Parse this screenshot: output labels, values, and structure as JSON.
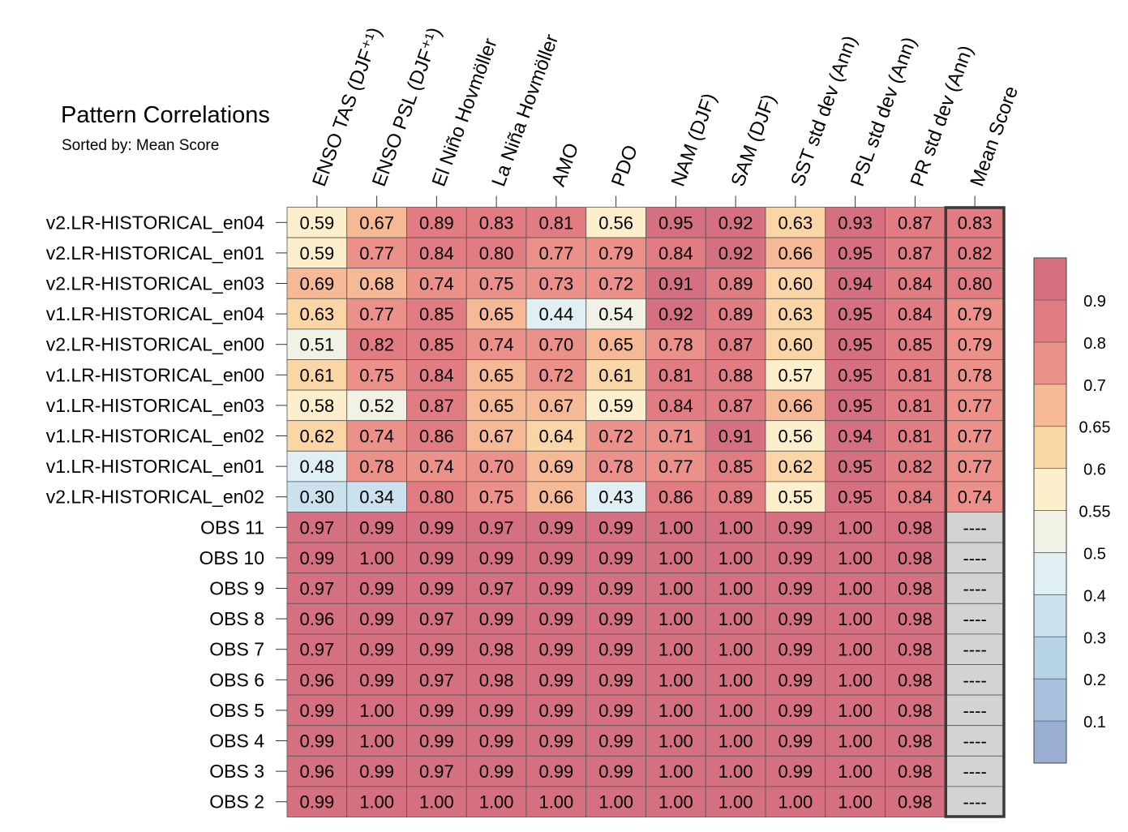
{
  "title": "Pattern Correlations",
  "subtitle": "Sorted by: Mean Score",
  "chart_data": {
    "type": "heatmap",
    "title": "Pattern Correlations",
    "subtitle": "Sorted by: Mean Score",
    "columns": [
      "ENSO TAS (DJF⁺¹)",
      "ENSO PSL (DJF⁺¹)",
      "El Niño Hovmöller",
      "La Niña Hovmöller",
      "AMO",
      "PDO",
      "NAM (DJF)",
      "SAM (DJF)",
      "SST std dev (Ann)",
      "PSL std dev (Ann)",
      "PR std dev (Ann)",
      "Mean Score"
    ],
    "rows": [
      "v2.LR-HISTORICAL_en04",
      "v2.LR-HISTORICAL_en01",
      "v2.LR-HISTORICAL_en03",
      "v1.LR-HISTORICAL_en04",
      "v2.LR-HISTORICAL_en00",
      "v1.LR-HISTORICAL_en00",
      "v1.LR-HISTORICAL_en03",
      "v1.LR-HISTORICAL_en02",
      "v1.LR-HISTORICAL_en01",
      "v2.LR-HISTORICAL_en02",
      "OBS 11",
      "OBS 10",
      "OBS 9",
      "OBS 8",
      "OBS 7",
      "OBS 6",
      "OBS 5",
      "OBS 4",
      "OBS 3",
      "OBS 2"
    ],
    "values": [
      [
        "0.59",
        "0.67",
        "0.89",
        "0.83",
        "0.81",
        "0.56",
        "0.95",
        "0.92",
        "0.63",
        "0.93",
        "0.87",
        "0.83"
      ],
      [
        "0.59",
        "0.77",
        "0.84",
        "0.80",
        "0.77",
        "0.79",
        "0.84",
        "0.92",
        "0.66",
        "0.95",
        "0.87",
        "0.82"
      ],
      [
        "0.69",
        "0.68",
        "0.74",
        "0.75",
        "0.73",
        "0.72",
        "0.91",
        "0.89",
        "0.60",
        "0.94",
        "0.84",
        "0.80"
      ],
      [
        "0.63",
        "0.77",
        "0.85",
        "0.65",
        "0.44",
        "0.54",
        "0.92",
        "0.89",
        "0.63",
        "0.95",
        "0.84",
        "0.79"
      ],
      [
        "0.51",
        "0.82",
        "0.85",
        "0.74",
        "0.70",
        "0.65",
        "0.78",
        "0.87",
        "0.60",
        "0.95",
        "0.85",
        "0.79"
      ],
      [
        "0.61",
        "0.75",
        "0.84",
        "0.65",
        "0.72",
        "0.61",
        "0.81",
        "0.88",
        "0.57",
        "0.95",
        "0.81",
        "0.78"
      ],
      [
        "0.58",
        "0.52",
        "0.87",
        "0.65",
        "0.67",
        "0.59",
        "0.84",
        "0.87",
        "0.66",
        "0.95",
        "0.81",
        "0.77"
      ],
      [
        "0.62",
        "0.74",
        "0.86",
        "0.67",
        "0.64",
        "0.72",
        "0.71",
        "0.91",
        "0.56",
        "0.94",
        "0.81",
        "0.77"
      ],
      [
        "0.48",
        "0.78",
        "0.74",
        "0.70",
        "0.69",
        "0.78",
        "0.77",
        "0.85",
        "0.62",
        "0.95",
        "0.82",
        "0.77"
      ],
      [
        "0.30",
        "0.34",
        "0.80",
        "0.75",
        "0.66",
        "0.43",
        "0.86",
        "0.89",
        "0.55",
        "0.95",
        "0.84",
        "0.74"
      ],
      [
        "0.97",
        "0.99",
        "0.99",
        "0.97",
        "0.99",
        "0.99",
        "1.00",
        "1.00",
        "0.99",
        "1.00",
        "0.98",
        "----"
      ],
      [
        "0.99",
        "1.00",
        "0.99",
        "0.99",
        "0.99",
        "0.99",
        "1.00",
        "1.00",
        "0.99",
        "1.00",
        "0.98",
        "----"
      ],
      [
        "0.97",
        "0.99",
        "0.99",
        "0.97",
        "0.99",
        "0.99",
        "1.00",
        "1.00",
        "0.99",
        "1.00",
        "0.98",
        "----"
      ],
      [
        "0.96",
        "0.99",
        "0.97",
        "0.99",
        "0.99",
        "0.99",
        "1.00",
        "1.00",
        "0.99",
        "1.00",
        "0.98",
        "----"
      ],
      [
        "0.97",
        "0.99",
        "0.99",
        "0.98",
        "0.99",
        "0.99",
        "1.00",
        "1.00",
        "0.99",
        "1.00",
        "0.98",
        "----"
      ],
      [
        "0.96",
        "0.99",
        "0.97",
        "0.98",
        "0.99",
        "0.99",
        "1.00",
        "1.00",
        "0.99",
        "1.00",
        "0.98",
        "----"
      ],
      [
        "0.99",
        "1.00",
        "0.99",
        "0.99",
        "0.99",
        "0.99",
        "1.00",
        "1.00",
        "0.99",
        "1.00",
        "0.98",
        "----"
      ],
      [
        "0.99",
        "1.00",
        "0.99",
        "0.99",
        "0.99",
        "0.99",
        "1.00",
        "1.00",
        "0.99",
        "1.00",
        "0.98",
        "----"
      ],
      [
        "0.96",
        "0.99",
        "0.97",
        "0.99",
        "0.99",
        "0.99",
        "1.00",
        "1.00",
        "0.99",
        "1.00",
        "0.98",
        "----"
      ],
      [
        "0.99",
        "1.00",
        "1.00",
        "1.00",
        "1.00",
        "1.00",
        "1.00",
        "1.00",
        "1.00",
        "1.00",
        "0.98",
        "----"
      ]
    ],
    "colorbar": {
      "levels": [
        0.1,
        0.2,
        0.3,
        0.4,
        0.5,
        0.55,
        0.6,
        0.65,
        0.7,
        0.8,
        0.9
      ],
      "tick_labels": [
        "0.1",
        "0.2",
        "0.3",
        "0.4",
        "0.5",
        "0.55",
        "0.6",
        "0.65",
        "0.7",
        "0.8",
        "0.9"
      ],
      "colors": [
        "#9aaed4",
        "#a7c0dc",
        "#b7d3e7",
        "#cbe2ee",
        "#e0eff3",
        "#f1f1e6",
        "#fdefcc",
        "#fad6a7",
        "#f6b995",
        "#eb9189",
        "#e27c83",
        "#d4707f"
      ]
    },
    "missing_color": "#d3d3d3"
  }
}
